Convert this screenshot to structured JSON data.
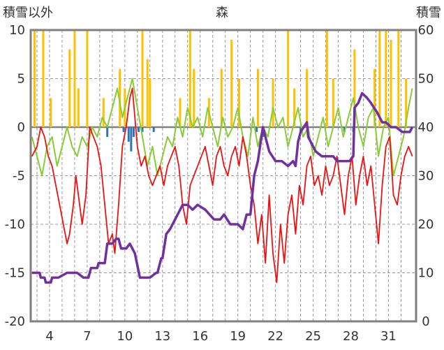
{
  "chart_data": {
    "type": "line",
    "title": "森",
    "ylabel_left": "積雪以外",
    "ylabel_right": "積雪",
    "x_ticks": [
      "4",
      "7",
      "10",
      "13",
      "16",
      "19",
      "22",
      "25",
      "28",
      "31"
    ],
    "x_range": [
      2.5,
      33.2
    ],
    "y_left_range": [
      -20,
      10
    ],
    "y_left_ticks": [
      "10",
      "5",
      "0",
      "-5",
      "-10",
      "-15",
      "-20"
    ],
    "y_right_range": [
      0,
      60
    ],
    "y_right_ticks": [
      "60",
      "50",
      "40",
      "30",
      "20",
      "10",
      "0"
    ],
    "grid": "vertical dashed, horizontal dashed",
    "colors": {
      "temperature_red": "#ee1111",
      "temperature_green": "#88cc33",
      "snow_depth": "#7030a0",
      "bars_above": "#ffc000",
      "bars_below": "#2e75b6",
      "frame": "#7f7f7f"
    },
    "series": [
      {
        "axis": "left",
        "color": "red",
        "x": [
          2.6,
          3.0,
          3.3,
          3.6,
          3.9,
          4.2,
          4.5,
          4.8,
          5.1,
          5.4,
          5.6,
          5.9,
          6.1,
          6.4,
          6.6,
          6.9,
          7.2,
          7.5,
          7.8,
          8.1,
          8.4,
          8.7,
          9.0,
          9.2,
          9.5,
          9.8,
          10.1,
          10.4,
          10.6,
          11.0,
          11.3,
          11.6,
          11.9,
          12.2,
          12.5,
          12.8,
          13.1,
          13.4,
          13.7,
          14.0,
          14.3,
          14.6,
          14.9,
          15.2,
          15.5,
          15.8,
          16.1,
          16.4,
          16.7,
          17.0,
          17.3,
          17.6,
          17.9,
          18.2,
          18.5,
          18.8,
          19.1,
          19.4,
          19.7,
          20.0,
          20.3,
          20.6,
          20.9,
          21.2,
          21.5,
          21.8,
          22.1,
          22.4,
          22.7,
          23.0,
          23.3,
          23.6,
          23.9,
          24.2,
          24.5,
          24.8,
          25.1,
          25.4,
          25.7,
          26.0,
          26.3,
          26.6,
          26.9,
          27.2,
          27.5,
          27.8,
          28.1,
          28.4,
          28.7,
          29.0,
          29.3,
          29.6,
          29.9,
          30.2,
          30.5,
          30.8,
          31.1,
          31.4,
          31.7,
          32.0,
          32.3,
          32.6,
          32.9
        ],
        "y": [
          -3,
          -2,
          0,
          -1,
          -3,
          -4,
          -6,
          -8,
          -10,
          -12,
          -11,
          -8,
          -5,
          -8,
          -10,
          -7,
          0,
          -1,
          -2,
          -4,
          -8,
          -12,
          -11,
          -13,
          -8,
          -2,
          0,
          3,
          4,
          -2,
          -4,
          -3,
          -5,
          -6,
          -5,
          -4,
          -6,
          -4,
          -3,
          -2,
          -4,
          -8,
          -10,
          -6,
          -5,
          -4,
          -3,
          -2,
          -4,
          -6,
          -3,
          -2,
          -4,
          -5,
          -3,
          -2,
          -4,
          -1,
          -3,
          -6,
          -8,
          -12,
          -9,
          -14,
          -7,
          -13,
          -16,
          -10,
          -14,
          -9,
          -7,
          -11,
          -6,
          -8,
          -4,
          -3,
          -6,
          -5,
          -7,
          -4,
          -6,
          -5,
          -3,
          -6,
          -9,
          -5,
          -3,
          -8,
          -5,
          -3,
          -6,
          -4,
          -8,
          -12,
          -6,
          -2,
          -1,
          -7,
          -8,
          -5,
          -3,
          -2,
          -3
        ]
      },
      {
        "axis": "left",
        "color": "green",
        "x": [
          2.6,
          3.0,
          3.4,
          3.8,
          4.2,
          4.6,
          5.0,
          5.4,
          5.8,
          6.2,
          6.6,
          7.0,
          7.4,
          7.8,
          8.2,
          8.6,
          9.0,
          9.4,
          9.8,
          10.2,
          10.6,
          11.0,
          11.4,
          11.8,
          12.2,
          12.6,
          13.0,
          13.4,
          13.8,
          14.2,
          14.6,
          15.0,
          15.4,
          15.8,
          16.2,
          16.6,
          17.0,
          17.4,
          17.8,
          18.2,
          18.6,
          19.0,
          19.4,
          19.8,
          20.2,
          20.6,
          21.0,
          21.4,
          21.8,
          22.2,
          22.6,
          23.0,
          23.4,
          23.8,
          24.2,
          24.6,
          25.0,
          25.4,
          25.8,
          26.2,
          26.6,
          27.0,
          27.4,
          27.8,
          28.2,
          28.6,
          29.0,
          29.4,
          29.8,
          30.2,
          30.6,
          31.0,
          31.4,
          31.8,
          32.2,
          32.6,
          32.9
        ],
        "y": [
          -1,
          -3,
          -5,
          -2,
          -1,
          -4,
          -2,
          0,
          -2,
          -3,
          -1,
          -2,
          0,
          -1,
          1,
          0,
          2,
          4,
          1,
          3,
          5,
          2,
          -1,
          -4,
          -2,
          -5,
          -3,
          -1,
          -2,
          1,
          -1,
          2,
          0,
          1,
          -1,
          2,
          0,
          -2,
          1,
          -1,
          0,
          2,
          -1,
          -3,
          1,
          -2,
          0,
          -1,
          2,
          0,
          1,
          -2,
          0,
          2,
          -1,
          0,
          -3,
          -1,
          1,
          -2,
          0,
          2,
          -1,
          1,
          3,
          0,
          -2,
          1,
          2,
          -3,
          0,
          1,
          -5,
          -3,
          -1,
          2,
          4
        ]
      },
      {
        "axis": "right",
        "color": "purple",
        "x": [
          2.6,
          3.2,
          3.3,
          3.6,
          3.7,
          4.1,
          4.2,
          4.7,
          5.4,
          6.2,
          6.7,
          7.1,
          7.3,
          7.8,
          7.9,
          8.4,
          8.6,
          9.0,
          9.3,
          9.5,
          9.7,
          10.1,
          10.4,
          10.8,
          11.2,
          12.0,
          12.5,
          12.6,
          12.9,
          13.0,
          13.3,
          13.6,
          14.0,
          14.6,
          15.0,
          15.4,
          15.8,
          16.4,
          17.1,
          17.6,
          17.9,
          18.4,
          19.0,
          19.4,
          19.7,
          20.0,
          20.3,
          20.6,
          21.0,
          21.5,
          22.0,
          22.5,
          23.0,
          23.4,
          23.6,
          23.8,
          24.0,
          24.5,
          24.6,
          25.2,
          25.7,
          26.1,
          26.6,
          26.9,
          27.2,
          27.5,
          27.9,
          28.2,
          28.3,
          28.6,
          28.9,
          29.3,
          29.6,
          30.1,
          30.5,
          30.8,
          31.2,
          31.6,
          32.1,
          32.7,
          32.9
        ],
        "y": [
          10,
          10,
          9,
          9,
          8,
          8,
          9,
          9,
          10,
          10,
          9,
          9,
          11,
          11,
          12,
          12,
          16,
          16,
          17,
          17,
          15,
          15,
          16,
          14,
          9,
          9,
          10,
          10,
          13,
          13,
          18,
          19,
          21,
          24,
          24,
          23,
          24,
          23,
          21,
          21,
          22,
          20,
          20,
          19,
          22,
          22,
          30,
          33,
          40,
          35,
          33,
          33,
          32,
          33,
          32,
          37,
          39,
          41,
          38,
          35,
          34,
          34,
          34,
          33,
          33,
          33,
          33,
          34,
          44,
          45,
          47,
          46,
          45,
          43,
          41,
          41,
          40,
          40,
          39,
          39,
          40
        ]
      }
    ],
    "bars_above": [
      {
        "x": 2.8,
        "value": 10
      },
      {
        "x": 3.5,
        "value": 10
      },
      {
        "x": 4.1,
        "value": 3
      },
      {
        "x": 5.6,
        "value": 8
      },
      {
        "x": 6.0,
        "value": 10
      },
      {
        "x": 6.3,
        "value": 4
      },
      {
        "x": 7.0,
        "value": 10
      },
      {
        "x": 8.3,
        "value": 3
      },
      {
        "x": 9.6,
        "value": 6
      },
      {
        "x": 10.0,
        "value": 4
      },
      {
        "x": 11.4,
        "value": 10
      },
      {
        "x": 11.8,
        "value": 7
      },
      {
        "x": 12.0,
        "value": 5
      },
      {
        "x": 14.4,
        "value": 3
      },
      {
        "x": 15.2,
        "value": 10
      },
      {
        "x": 15.5,
        "value": 6
      },
      {
        "x": 16.7,
        "value": 3
      },
      {
        "x": 17.7,
        "value": 6
      },
      {
        "x": 18.5,
        "value": 9
      },
      {
        "x": 19.1,
        "value": 5
      },
      {
        "x": 20.6,
        "value": 6
      },
      {
        "x": 21.8,
        "value": 5
      },
      {
        "x": 23.0,
        "value": 10
      },
      {
        "x": 23.5,
        "value": 4
      },
      {
        "x": 24.5,
        "value": 6
      },
      {
        "x": 26.1,
        "value": 10
      },
      {
        "x": 26.6,
        "value": 5
      },
      {
        "x": 28.3,
        "value": 8
      },
      {
        "x": 29.9,
        "value": 6
      },
      {
        "x": 30.3,
        "value": 10
      },
      {
        "x": 30.8,
        "value": 10
      },
      {
        "x": 31.2,
        "value": 9
      },
      {
        "x": 31.8,
        "value": 10
      },
      {
        "x": 32.4,
        "value": 5
      }
    ],
    "bars_below": [
      {
        "x": 8.6,
        "value": -1
      },
      {
        "x": 9.9,
        "value": -0.5
      },
      {
        "x": 10.3,
        "value": -1.5
      },
      {
        "x": 10.5,
        "value": -2.5
      },
      {
        "x": 10.7,
        "value": -1
      },
      {
        "x": 11.1,
        "value": -0.5
      },
      {
        "x": 11.4,
        "value": -0.5
      },
      {
        "x": 12.3,
        "value": -0.5
      },
      {
        "x": 20.5,
        "value": -0.5
      },
      {
        "x": 21.0,
        "value": -1
      },
      {
        "x": 24.0,
        "value": -0.5
      },
      {
        "x": 27.5,
        "value": -0.5
      },
      {
        "x": 28.2,
        "value": -0.5
      }
    ]
  }
}
